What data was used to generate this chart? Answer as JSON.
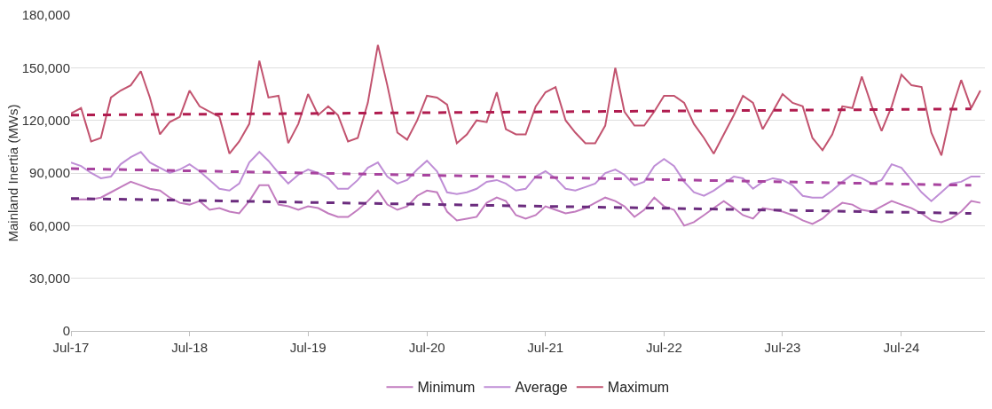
{
  "chart_data": {
    "type": "line",
    "ylabel": "Mainland Inertia (MWs)",
    "x": [
      "2017-07",
      "2017-08",
      "2017-09",
      "2017-10",
      "2017-11",
      "2017-12",
      "2018-01",
      "2018-02",
      "2018-03",
      "2018-04",
      "2018-05",
      "2018-06",
      "2018-07",
      "2018-08",
      "2018-09",
      "2018-10",
      "2018-11",
      "2018-12",
      "2019-01",
      "2019-02",
      "2019-03",
      "2019-04",
      "2019-05",
      "2019-06",
      "2019-07",
      "2019-08",
      "2019-09",
      "2019-10",
      "2019-11",
      "2019-12",
      "2020-01",
      "2020-02",
      "2020-03",
      "2020-04",
      "2020-05",
      "2020-06",
      "2020-07",
      "2020-08",
      "2020-09",
      "2020-10",
      "2020-11",
      "2020-12",
      "2021-01",
      "2021-02",
      "2021-03",
      "2021-04",
      "2021-05",
      "2021-06",
      "2021-07",
      "2021-08",
      "2021-09",
      "2021-10",
      "2021-11",
      "2021-12",
      "2022-01",
      "2022-02",
      "2022-03",
      "2022-04",
      "2022-05",
      "2022-06",
      "2022-07",
      "2022-08",
      "2022-09",
      "2022-10",
      "2022-11",
      "2022-12",
      "2023-01",
      "2023-02",
      "2023-03",
      "2023-04",
      "2023-05",
      "2023-06",
      "2023-07",
      "2023-08",
      "2023-09",
      "2023-10",
      "2023-11",
      "2023-12",
      "2024-01",
      "2024-02",
      "2024-03",
      "2024-04",
      "2024-05",
      "2024-06",
      "2024-07",
      "2024-08",
      "2024-09",
      "2024-10",
      "2024-11",
      "2024-12",
      "2025-01",
      "2025-02",
      "2025-03"
    ],
    "series": [
      {
        "name": "Minimum",
        "color": "#c27cbf",
        "values": [
          75000,
          75000,
          75000,
          76000,
          79000,
          82000,
          85000,
          83000,
          81000,
          80000,
          76000,
          73000,
          72000,
          74000,
          69000,
          70000,
          68000,
          67000,
          74000,
          83000,
          83000,
          72000,
          71000,
          69000,
          71000,
          70000,
          67000,
          65000,
          65000,
          69000,
          74000,
          80000,
          72000,
          69000,
          71000,
          77000,
          80000,
          79000,
          68000,
          63000,
          64000,
          65000,
          73000,
          76000,
          74000,
          66000,
          64000,
          66000,
          71000,
          69000,
          67000,
          68000,
          70000,
          73000,
          76000,
          74000,
          71000,
          65000,
          69000,
          76000,
          71000,
          69000,
          60000,
          62000,
          66000,
          70000,
          74000,
          70000,
          66000,
          64000,
          70000,
          69000,
          68000,
          66000,
          63000,
          61000,
          64000,
          69000,
          73000,
          72000,
          69000,
          68000,
          71000,
          74000,
          72000,
          70000,
          67000,
          63000,
          62000,
          64000,
          68000,
          74000,
          73000
        ]
      },
      {
        "name": "Average",
        "color": "#bf8ed6",
        "values": [
          96000,
          94000,
          90000,
          87000,
          88000,
          95000,
          99000,
          102000,
          96000,
          93000,
          90000,
          92000,
          95000,
          91000,
          86000,
          81000,
          80000,
          84000,
          96000,
          102000,
          97000,
          90000,
          84000,
          89000,
          92000,
          90000,
          87000,
          81000,
          81000,
          86000,
          93000,
          96000,
          88000,
          84000,
          86000,
          92000,
          97000,
          91000,
          79000,
          78000,
          79000,
          81000,
          85000,
          86000,
          84000,
          80000,
          81000,
          88000,
          91000,
          87000,
          81000,
          80000,
          82000,
          84000,
          90000,
          92000,
          89000,
          83000,
          85000,
          94000,
          98000,
          94000,
          85000,
          79000,
          77000,
          80000,
          84000,
          88000,
          87000,
          81000,
          85000,
          87000,
          86000,
          83000,
          77000,
          76000,
          76000,
          80000,
          85000,
          89000,
          87000,
          84000,
          86000,
          95000,
          93000,
          86000,
          79000,
          74000,
          79000,
          84000,
          85000,
          88000,
          88000
        ]
      },
      {
        "name": "Maximum",
        "color": "#c2536f",
        "values": [
          124000,
          127000,
          108000,
          110000,
          133000,
          137000,
          140000,
          148000,
          133000,
          112000,
          119000,
          122000,
          137000,
          128000,
          125000,
          122000,
          101000,
          108000,
          118000,
          154000,
          133000,
          134000,
          107000,
          118000,
          135000,
          123000,
          128000,
          123000,
          108000,
          110000,
          130000,
          163000,
          140000,
          113000,
          109000,
          120000,
          134000,
          133000,
          129000,
          107000,
          112000,
          120000,
          119000,
          136000,
          115000,
          112000,
          112000,
          128000,
          136000,
          139000,
          120000,
          113000,
          107000,
          107000,
          117000,
          150000,
          125000,
          117000,
          117000,
          125000,
          134000,
          134000,
          130000,
          118000,
          110000,
          101000,
          112000,
          123000,
          134000,
          130000,
          115000,
          125000,
          135000,
          130000,
          128000,
          110000,
          103000,
          112000,
          128000,
          127000,
          145000,
          128000,
          114000,
          128000,
          146000,
          140000,
          139000,
          113000,
          100000,
          125000,
          143000,
          127000,
          137000
        ]
      },
      {
        "color": "#6b2c7e",
        "line_style": "dashed",
        "x": [
          "2017-07",
          "2025-02"
        ],
        "values": [
          75500,
          67000
        ]
      },
      {
        "color": "#a8449f",
        "line_style": "dashed",
        "x": [
          "2017-07",
          "2025-02"
        ],
        "values": [
          92500,
          83000
        ]
      },
      {
        "color": "#b01c4f",
        "line_style": "dashed",
        "x": [
          "2017-07",
          "2025-02"
        ],
        "values": [
          123000,
          126500
        ]
      }
    ],
    "xlim": [
      "2017-07-01",
      "2025-03-15"
    ],
    "xticks": [
      {
        "value": "2017-07",
        "label": "Jul-17"
      },
      {
        "value": "2018-07",
        "label": "Jul-18"
      },
      {
        "value": "2019-07",
        "label": "Jul-19"
      },
      {
        "value": "2020-07",
        "label": "Jul-20"
      },
      {
        "value": "2021-07",
        "label": "Jul-21"
      },
      {
        "value": "2022-07",
        "label": "Jul-22"
      },
      {
        "value": "2023-07",
        "label": "Jul-23"
      },
      {
        "value": "2024-07",
        "label": "Jul-24"
      }
    ],
    "ylim": [
      0,
      180000
    ],
    "yticks": [
      {
        "value": 0,
        "label": "0"
      },
      {
        "value": 30000,
        "label": "30,000"
      },
      {
        "value": 60000,
        "label": "60,000"
      },
      {
        "value": 90000,
        "label": "90,000"
      },
      {
        "value": 120000,
        "label": "120,000"
      },
      {
        "value": 150000,
        "label": "150,000"
      },
      {
        "value": 180000,
        "label": "180,000"
      }
    ],
    "grid": "y",
    "legend": "bottom",
    "marker": "none",
    "line_style": "solid"
  }
}
